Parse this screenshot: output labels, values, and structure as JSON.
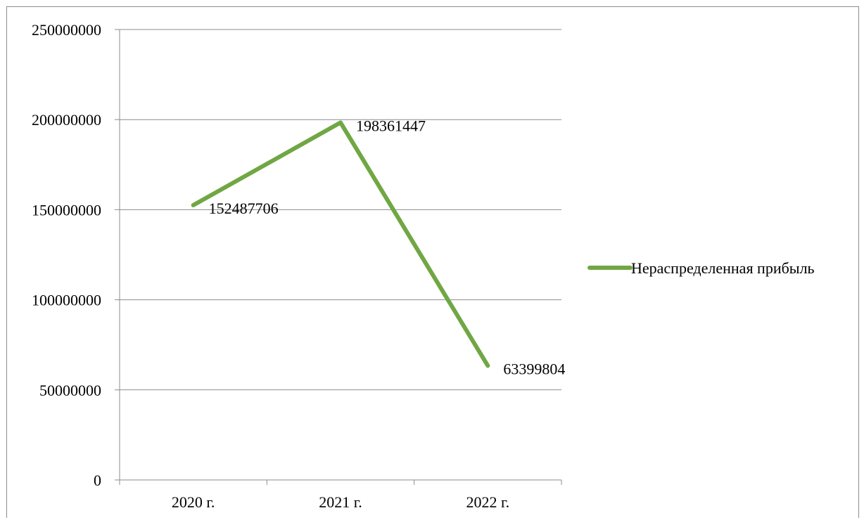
{
  "chart_data": {
    "type": "line",
    "categories": [
      "2020 г.",
      "2021 г.",
      "2022 г."
    ],
    "series": [
      {
        "name": "Нераспределенная прибыль",
        "values": [
          152487706,
          198361447,
          63399804
        ],
        "color": "#70a744"
      }
    ],
    "data_labels": [
      "152487706",
      "198361447",
      "63399804"
    ],
    "y_ticks": [
      "0",
      "50000000",
      "100000000",
      "150000000",
      "200000000",
      "250000000"
    ],
    "ylim": [
      0,
      250000000
    ],
    "ystep": 50000000,
    "grid": true,
    "legend_position": "right",
    "title": "",
    "xlabel": "",
    "ylabel": ""
  }
}
